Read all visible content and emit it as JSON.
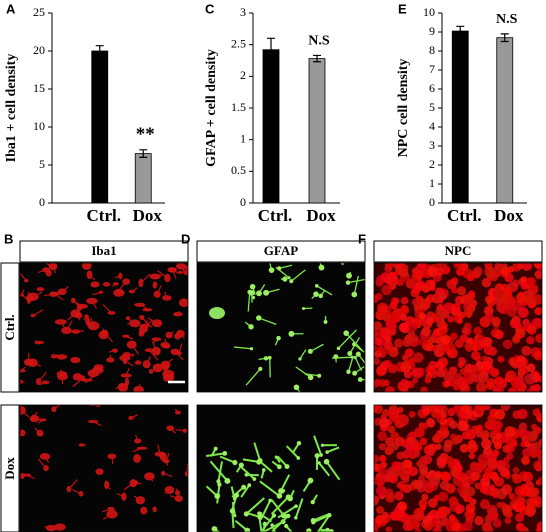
{
  "chart_data": [
    {
      "type": "bar",
      "panel_letter": "A",
      "y_label": "Iba1 + cell density",
      "categories": [
        "Ctrl.",
        "Dox"
      ],
      "values": [
        20,
        6.5
      ],
      "errors": [
        0.7,
        0.5
      ],
      "colors": [
        "#000000",
        "#999999"
      ],
      "annotation": "**",
      "ylim": [
        0,
        25
      ],
      "yticks": [
        0,
        5,
        10,
        15,
        20,
        25
      ]
    },
    {
      "type": "bar",
      "panel_letter": "C",
      "y_label": "GFAP + cell density",
      "categories": [
        "Ctrl.",
        "Dox"
      ],
      "values": [
        2.42,
        2.28
      ],
      "errors": [
        0.18,
        0.05
      ],
      "colors": [
        "#000000",
        "#999999"
      ],
      "annotation": "N.S",
      "ylim": [
        0,
        3
      ],
      "yticks": [
        0,
        0.5,
        1,
        1.5,
        2,
        2.5,
        3
      ]
    },
    {
      "type": "bar",
      "panel_letter": "E",
      "y_label": "NPC cell density",
      "categories": [
        "Ctrl.",
        "Dox"
      ],
      "values": [
        9.05,
        8.7
      ],
      "errors": [
        0.25,
        0.2
      ],
      "colors": [
        "#000000",
        "#999999"
      ],
      "annotation": "N.S",
      "ylim": [
        0,
        10
      ],
      "yticks": [
        0,
        1,
        2,
        3,
        4,
        5,
        6,
        7,
        8,
        9,
        10
      ]
    }
  ],
  "image_panels": [
    {
      "letter": "B",
      "title": "Iba1"
    },
    {
      "letter": "D",
      "title": "GFAP"
    },
    {
      "letter": "F",
      "title": "NPC"
    }
  ],
  "rows": [
    "Ctrl.",
    "Dox"
  ]
}
